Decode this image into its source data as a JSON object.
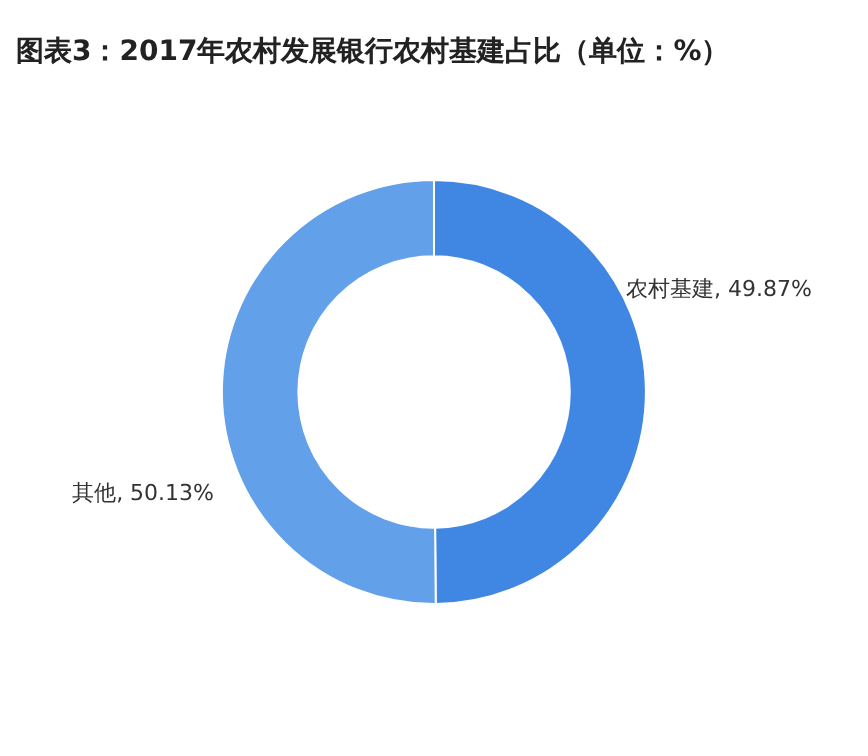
{
  "chart_data": {
    "type": "donut",
    "title": "图表3：2017年农村发展银行农村基建占比（单位：%）",
    "categories": [
      "农村基建",
      "其他"
    ],
    "values": [
      49.87,
      50.13
    ],
    "colors": [
      "#3f87e2",
      "#62a0ea"
    ],
    "value_labels": [
      "49.87%",
      "50.13%"
    ],
    "legend": false
  }
}
